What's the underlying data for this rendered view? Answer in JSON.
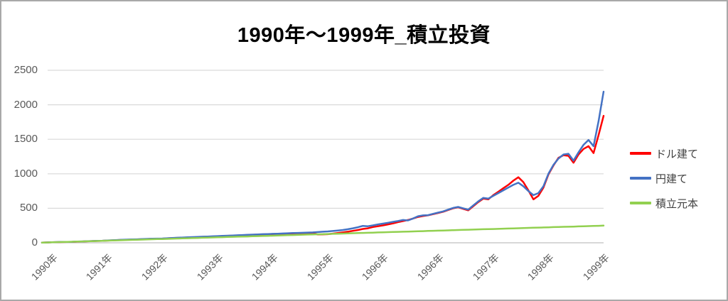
{
  "frame": {
    "border_color": "#a9a9a9",
    "background": "#ffffff"
  },
  "title": "1990年〜1999年_積立投資",
  "y_axis": {
    "ticks": [
      0,
      500,
      1000,
      1500,
      2000,
      2500
    ],
    "min": 0,
    "max": 2500
  },
  "x_axis": {
    "labels": [
      {
        "text": "1990年",
        "month": 0
      },
      {
        "text": "1991年",
        "month": 11
      },
      {
        "text": "1992年",
        "month": 22
      },
      {
        "text": "1993年",
        "month": 33
      },
      {
        "text": "1994年",
        "month": 44
      },
      {
        "text": "1995年",
        "month": 55
      },
      {
        "text": "1996年",
        "month": 66
      },
      {
        "text": "1996年",
        "month": 77
      },
      {
        "text": "1997年",
        "month": 88
      },
      {
        "text": "1998年",
        "month": 99
      },
      {
        "text": "1999年",
        "month": 110
      }
    ]
  },
  "legend": {
    "items": [
      {
        "key": "usd",
        "label": "ドル建て",
        "color": "#ff0000"
      },
      {
        "key": "jpy",
        "label": "円建て",
        "color": "#4472c4"
      },
      {
        "key": "principal",
        "label": "積立元本",
        "color": "#92d050"
      }
    ]
  },
  "chart_data": {
    "type": "line",
    "title": "1990年〜1999年_積立投資",
    "xlabel": "",
    "ylabel": "",
    "x_unit": "month_index_from_1990-01",
    "x_range": [
      0,
      112
    ],
    "ylim": [
      0,
      2500
    ],
    "y_ticks": [
      0,
      500,
      1000,
      1500,
      2000,
      2500
    ],
    "grid": "horizontal",
    "legend_position": "right",
    "gridline_color": "#d9d9d9",
    "zeroline_color": "#bfbfbf",
    "series": [
      {
        "key": "usd",
        "name": "ドル建て",
        "color": "#ff0000",
        "values": [
          2,
          5,
          7,
          9,
          11,
          12,
          13,
          16,
          19,
          22,
          25,
          27,
          28,
          32,
          35,
          38,
          42,
          44,
          46,
          48,
          51,
          55,
          58,
          59,
          60,
          64,
          68,
          71,
          73,
          76,
          78,
          81,
          85,
          88,
          91,
          94,
          97,
          100,
          103,
          106,
          109,
          112,
          115,
          118,
          120,
          123,
          126,
          128,
          130,
          133,
          136,
          138,
          139,
          140,
          138,
          120,
          122,
          125,
          133,
          141,
          150,
          161,
          173,
          185,
          201,
          210,
          228,
          240,
          252,
          266,
          281,
          299,
          315,
          330,
          352,
          375,
          388,
          398,
          415,
          432,
          450,
          475,
          500,
          515,
          492,
          470,
          530,
          590,
          640,
          630,
          690,
          740,
          790,
          840,
          900,
          950,
          880,
          760,
          630,
          680,
          800,
          990,
          1120,
          1230,
          1270,
          1260,
          1160,
          1280,
          1360,
          1400,
          1300,
          1560,
          1840
        ]
      },
      {
        "key": "jpy",
        "name": "円建て",
        "color": "#4472c4",
        "values": [
          2,
          5,
          8,
          10,
          12,
          13,
          14,
          17,
          20,
          23,
          26,
          28,
          30,
          34,
          37,
          40,
          44,
          46,
          48,
          50,
          53,
          57,
          60,
          61,
          62,
          66,
          70,
          73,
          76,
          79,
          82,
          85,
          88,
          91,
          94,
          97,
          100,
          103,
          106,
          109,
          112,
          115,
          118,
          121,
          124,
          127,
          130,
          132,
          135,
          138,
          141,
          143,
          145,
          148,
          150,
          155,
          160,
          165,
          171,
          178,
          185,
          197,
          210,
          225,
          245,
          240,
          252,
          266,
          278,
          290,
          303,
          316,
          330,
          324,
          352,
          385,
          397,
          400,
          420,
          437,
          455,
          480,
          505,
          520,
          500,
          480,
          540,
          600,
          650,
          640,
          680,
          720,
          760,
          800,
          840,
          870,
          820,
          750,
          690,
          720,
          820,
          1000,
          1130,
          1220,
          1280,
          1290,
          1190,
          1310,
          1420,
          1490,
          1400,
          1760,
          2190
        ]
      },
      {
        "key": "principal",
        "name": "積立元本",
        "color": "#92d050",
        "values": [
          2,
          4,
          7,
          9,
          11,
          13,
          15,
          18,
          20,
          22,
          24,
          26,
          29,
          31,
          33,
          35,
          37,
          40,
          42,
          44,
          46,
          48,
          51,
          53,
          55,
          57,
          59,
          62,
          64,
          66,
          68,
          70,
          73,
          75,
          77,
          79,
          81,
          84,
          86,
          88,
          90,
          92,
          95,
          97,
          99,
          101,
          103,
          106,
          108,
          110,
          112,
          114,
          117,
          119,
          121,
          123,
          125,
          128,
          130,
          132,
          134,
          136,
          139,
          141,
          143,
          145,
          147,
          150,
          152,
          154,
          156,
          158,
          161,
          163,
          165,
          167,
          169,
          172,
          174,
          176,
          178,
          180,
          183,
          185,
          187,
          189,
          191,
          194,
          196,
          198,
          200,
          202,
          205,
          207,
          209,
          211,
          213,
          216,
          218,
          220,
          222,
          224,
          227,
          229,
          231,
          233,
          235,
          238,
          240,
          242,
          244,
          246,
          249
        ]
      }
    ]
  }
}
